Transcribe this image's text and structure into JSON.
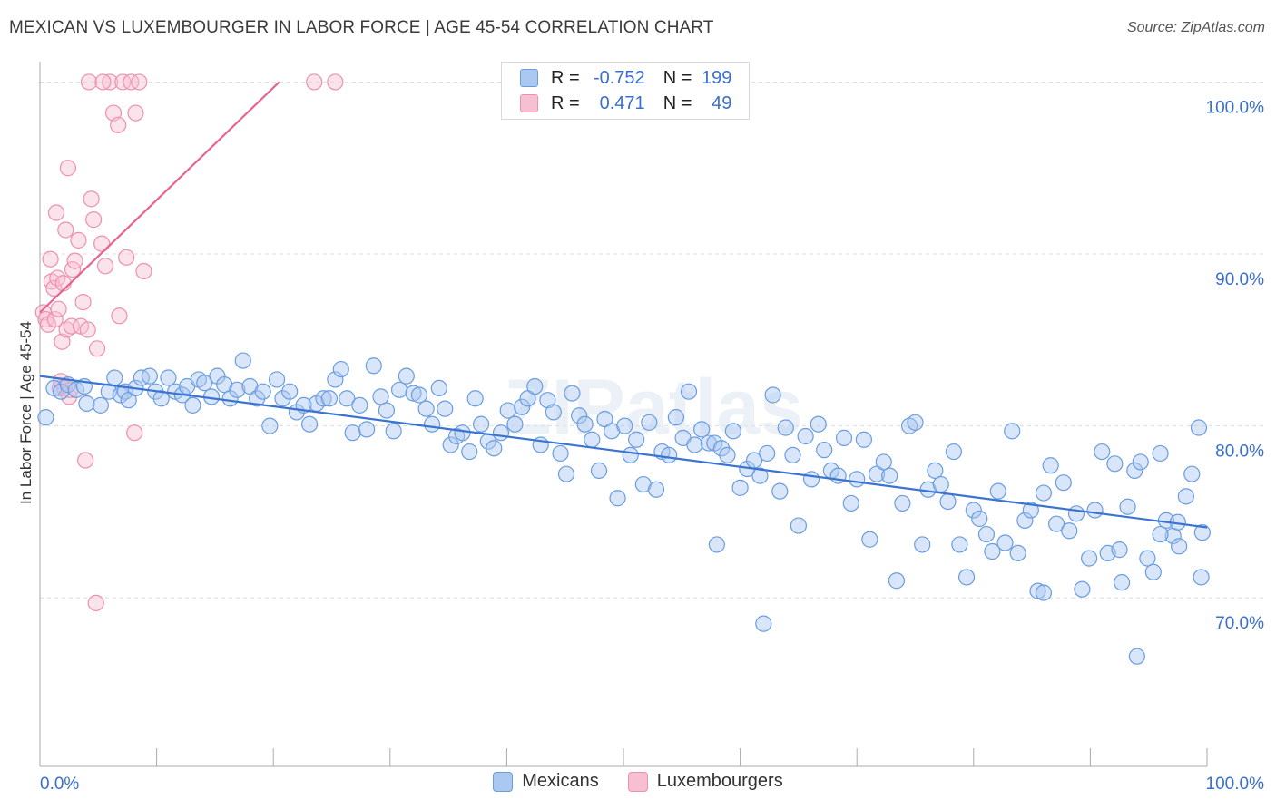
{
  "title": "MEXICAN VS LUXEMBOURGER IN LABOR FORCE | AGE 45-54 CORRELATION CHART",
  "source": "Source: ZipAtlas.com",
  "watermark": "ZIPatlas",
  "legend": {
    "rows": [
      {
        "r_label": "R =",
        "r_value": "-0.752",
        "n_label": "N =",
        "n_value": "199",
        "fill": "#aac8f2",
        "stroke": "#6a9de0"
      },
      {
        "r_label": "R =",
        "r_value": "0.471",
        "n_label": "N =",
        "n_value": "49",
        "fill": "#f7c0d2",
        "stroke": "#ee8fb0"
      }
    ]
  },
  "bottom_legend": [
    {
      "label": "Mexicans",
      "fill": "#aac8f2",
      "stroke": "#6a9de0"
    },
    {
      "label": "Luxembourgers",
      "fill": "#f7c0d2",
      "stroke": "#ee8fb0"
    }
  ],
  "chart_data": {
    "type": "scatter",
    "title": "MEXICAN VS LUXEMBOURGER IN LABOR FORCE | AGE 45-54 CORRELATION CHART",
    "xlabel": "",
    "ylabel": "In Labor Force | Age 45-54",
    "xlim": [
      0,
      100
    ],
    "ylim": [
      60.2,
      101.5
    ],
    "x_tick_labels": [
      "0.0%",
      "100.0%"
    ],
    "y_ticks": [
      70,
      80,
      90,
      100
    ],
    "y_tick_labels": [
      "70.0%",
      "80.0%",
      "90.0%",
      "100.0%"
    ],
    "grid": true,
    "colors": {
      "blue": "#3a74d0",
      "pink": "#e8638f",
      "axis_label": "#3a6fd0"
    },
    "series": [
      {
        "name": "Mexicans",
        "color": "#6a9de0",
        "fill": "#aac8f2",
        "trend": {
          "x": [
            0,
            100
          ],
          "y": [
            82.9,
            74.1
          ]
        },
        "points": [
          [
            0.5,
            80.5
          ],
          [
            1.2,
            82.2
          ],
          [
            1.8,
            82.0
          ],
          [
            2.4,
            82.4
          ],
          [
            3.1,
            82.1
          ],
          [
            3.8,
            82.3
          ],
          [
            4.0,
            81.3
          ],
          [
            5.2,
            81.2
          ],
          [
            5.9,
            82.0
          ],
          [
            6.4,
            82.8
          ],
          [
            6.9,
            81.8
          ],
          [
            7.3,
            82.0
          ],
          [
            7.6,
            81.5
          ],
          [
            8.2,
            82.2
          ],
          [
            8.7,
            82.8
          ],
          [
            9.4,
            82.9
          ],
          [
            9.9,
            82.0
          ],
          [
            10.4,
            81.6
          ],
          [
            11.0,
            82.8
          ],
          [
            11.6,
            82.0
          ],
          [
            12.2,
            81.8
          ],
          [
            12.6,
            82.3
          ],
          [
            13.1,
            81.2
          ],
          [
            13.6,
            82.7
          ],
          [
            14.1,
            82.5
          ],
          [
            14.7,
            81.7
          ],
          [
            15.2,
            82.9
          ],
          [
            15.8,
            82.4
          ],
          [
            16.3,
            81.6
          ],
          [
            16.9,
            82.1
          ],
          [
            17.4,
            83.8
          ],
          [
            18.0,
            82.3
          ],
          [
            18.6,
            81.6
          ],
          [
            19.1,
            82.0
          ],
          [
            19.7,
            80.0
          ],
          [
            20.3,
            82.7
          ],
          [
            20.8,
            81.6
          ],
          [
            21.4,
            82.0
          ],
          [
            22.0,
            80.8
          ],
          [
            22.6,
            81.2
          ],
          [
            23.1,
            80.1
          ],
          [
            23.7,
            81.3
          ],
          [
            24.3,
            81.6
          ],
          [
            24.8,
            81.6
          ],
          [
            25.3,
            82.7
          ],
          [
            25.8,
            83.3
          ],
          [
            26.3,
            81.6
          ],
          [
            26.8,
            79.6
          ],
          [
            27.4,
            81.2
          ],
          [
            28.0,
            79.8
          ],
          [
            28.6,
            83.5
          ],
          [
            29.2,
            81.7
          ],
          [
            29.7,
            80.9
          ],
          [
            30.3,
            79.7
          ],
          [
            30.8,
            82.1
          ],
          [
            31.4,
            82.9
          ],
          [
            32.0,
            81.9
          ],
          [
            32.5,
            81.8
          ],
          [
            33.1,
            81.0
          ],
          [
            33.6,
            80.1
          ],
          [
            34.2,
            82.2
          ],
          [
            34.7,
            81.0
          ],
          [
            35.2,
            78.9
          ],
          [
            35.7,
            79.4
          ],
          [
            36.2,
            79.6
          ],
          [
            36.8,
            78.5
          ],
          [
            37.3,
            81.6
          ],
          [
            37.8,
            80.1
          ],
          [
            38.4,
            79.1
          ],
          [
            38.9,
            78.7
          ],
          [
            39.5,
            79.6
          ],
          [
            40.1,
            80.9
          ],
          [
            40.7,
            80.1
          ],
          [
            41.3,
            81.1
          ],
          [
            41.8,
            81.6
          ],
          [
            42.4,
            82.3
          ],
          [
            42.9,
            78.9
          ],
          [
            43.5,
            81.5
          ],
          [
            44.0,
            80.8
          ],
          [
            44.6,
            78.4
          ],
          [
            45.1,
            77.2
          ],
          [
            45.6,
            81.9
          ],
          [
            46.2,
            80.6
          ],
          [
            46.7,
            80.1
          ],
          [
            47.3,
            79.2
          ],
          [
            47.9,
            77.4
          ],
          [
            48.4,
            80.4
          ],
          [
            49.0,
            79.7
          ],
          [
            49.5,
            75.8
          ],
          [
            50.1,
            80.0
          ],
          [
            50.6,
            78.3
          ],
          [
            51.1,
            79.2
          ],
          [
            51.7,
            76.6
          ],
          [
            52.2,
            80.2
          ],
          [
            52.8,
            76.3
          ],
          [
            53.3,
            78.5
          ],
          [
            53.9,
            78.3
          ],
          [
            54.5,
            80.5
          ],
          [
            55.1,
            79.3
          ],
          [
            55.6,
            82.0
          ],
          [
            56.1,
            78.9
          ],
          [
            56.7,
            79.8
          ],
          [
            57.3,
            79.0
          ],
          [
            57.8,
            79.0
          ],
          [
            58.4,
            78.7
          ],
          [
            58.9,
            78.3
          ],
          [
            59.4,
            79.7
          ],
          [
            60.0,
            76.4
          ],
          [
            60.6,
            77.5
          ],
          [
            61.2,
            78.0
          ],
          [
            61.7,
            77.1
          ],
          [
            62.3,
            78.4
          ],
          [
            62.8,
            81.8
          ],
          [
            63.4,
            76.2
          ],
          [
            63.9,
            79.9
          ],
          [
            64.5,
            78.3
          ],
          [
            65.0,
            74.2
          ],
          [
            65.6,
            79.4
          ],
          [
            66.1,
            76.9
          ],
          [
            66.7,
            80.1
          ],
          [
            67.2,
            78.6
          ],
          [
            67.8,
            77.4
          ],
          [
            68.4,
            77.1
          ],
          [
            68.9,
            79.3
          ],
          [
            69.5,
            75.5
          ],
          [
            70.0,
            76.9
          ],
          [
            70.6,
            79.2
          ],
          [
            71.1,
            73.4
          ],
          [
            71.7,
            77.2
          ],
          [
            72.3,
            77.9
          ],
          [
            72.8,
            77.1
          ],
          [
            73.4,
            71.0
          ],
          [
            73.9,
            75.5
          ],
          [
            74.5,
            80.0
          ],
          [
            75.0,
            80.2
          ],
          [
            75.6,
            73.1
          ],
          [
            76.1,
            76.3
          ],
          [
            76.7,
            77.4
          ],
          [
            77.2,
            76.6
          ],
          [
            77.8,
            75.6
          ],
          [
            78.3,
            78.5
          ],
          [
            78.8,
            73.1
          ],
          [
            79.4,
            71.2
          ],
          [
            80.0,
            75.1
          ],
          [
            80.5,
            74.6
          ],
          [
            81.1,
            73.7
          ],
          [
            81.6,
            72.7
          ],
          [
            82.1,
            76.2
          ],
          [
            82.7,
            73.2
          ],
          [
            83.3,
            79.7
          ],
          [
            83.8,
            72.6
          ],
          [
            84.4,
            74.5
          ],
          [
            84.9,
            75.1
          ],
          [
            85.5,
            70.4
          ],
          [
            86.0,
            76.1
          ],
          [
            86.6,
            77.7
          ],
          [
            87.1,
            74.3
          ],
          [
            87.7,
            76.7
          ],
          [
            88.2,
            73.9
          ],
          [
            88.8,
            74.9
          ],
          [
            89.3,
            70.5
          ],
          [
            89.9,
            72.3
          ],
          [
            90.4,
            75.1
          ],
          [
            91.0,
            78.5
          ],
          [
            91.5,
            72.6
          ],
          [
            92.1,
            77.8
          ],
          [
            92.7,
            70.9
          ],
          [
            93.2,
            75.3
          ],
          [
            93.8,
            77.4
          ],
          [
            94.3,
            77.9
          ],
          [
            94.9,
            72.3
          ],
          [
            95.4,
            71.5
          ],
          [
            96.0,
            78.4
          ],
          [
            96.5,
            74.5
          ],
          [
            97.1,
            73.6
          ],
          [
            97.6,
            73.0
          ],
          [
            98.2,
            75.9
          ],
          [
            98.7,
            77.2
          ],
          [
            99.3,
            79.9
          ],
          [
            99.6,
            73.8
          ],
          [
            58.0,
            73.1
          ],
          [
            62.0,
            68.5
          ],
          [
            86.0,
            70.3
          ],
          [
            92.5,
            72.8
          ],
          [
            94.0,
            66.6
          ],
          [
            96.0,
            73.7
          ],
          [
            97.5,
            74.4
          ],
          [
            99.5,
            71.2
          ]
        ]
      },
      {
        "name": "Luxembourgers",
        "color": "#ee8fb0",
        "fill": "#f7c0d2",
        "trend": {
          "x": [
            0,
            20.5
          ],
          "y": [
            86.6,
            100
          ]
        },
        "points": [
          [
            0.3,
            86.6
          ],
          [
            0.5,
            86.2
          ],
          [
            0.7,
            85.9
          ],
          [
            0.9,
            89.7
          ],
          [
            1.0,
            88.4
          ],
          [
            1.2,
            88.0
          ],
          [
            1.3,
            86.2
          ],
          [
            1.4,
            92.4
          ],
          [
            1.5,
            88.6
          ],
          [
            1.6,
            86.8
          ],
          [
            1.7,
            82.2
          ],
          [
            1.8,
            82.6
          ],
          [
            1.9,
            84.9
          ],
          [
            2.0,
            88.3
          ],
          [
            2.1,
            82.2
          ],
          [
            2.2,
            91.4
          ],
          [
            2.3,
            85.6
          ],
          [
            2.4,
            95.0
          ],
          [
            2.5,
            81.7
          ],
          [
            2.6,
            82.1
          ],
          [
            2.7,
            85.8
          ],
          [
            2.8,
            89.1
          ],
          [
            3.0,
            89.6
          ],
          [
            3.3,
            90.8
          ],
          [
            3.5,
            85.8
          ],
          [
            3.7,
            87.2
          ],
          [
            4.1,
            85.6
          ],
          [
            4.4,
            93.2
          ],
          [
            4.6,
            92.0
          ],
          [
            4.9,
            84.5
          ],
          [
            5.3,
            90.6
          ],
          [
            5.6,
            89.3
          ],
          [
            6.0,
            100.0
          ],
          [
            6.3,
            98.2
          ],
          [
            6.7,
            97.5
          ],
          [
            7.1,
            100.0
          ],
          [
            7.4,
            89.8
          ],
          [
            7.8,
            100.0
          ],
          [
            8.2,
            98.2
          ],
          [
            8.5,
            100.0
          ],
          [
            8.9,
            89.0
          ],
          [
            4.2,
            100.0
          ],
          [
            5.4,
            100.0
          ],
          [
            23.5,
            100.0
          ],
          [
            25.3,
            100.0
          ],
          [
            6.8,
            86.4
          ],
          [
            8.1,
            79.6
          ],
          [
            3.9,
            78.0
          ],
          [
            4.8,
            69.7
          ]
        ]
      }
    ]
  }
}
